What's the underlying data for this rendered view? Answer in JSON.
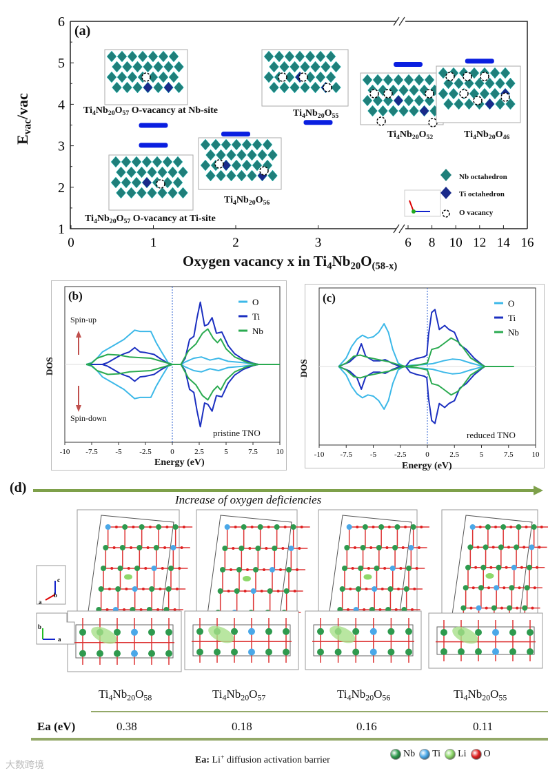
{
  "panel_a": {
    "label": "(a)",
    "structures": [
      {
        "formula": [
          [
            "Ti",
            0
          ],
          [
            "4",
            1
          ],
          [
            "Nb",
            0
          ],
          [
            "20",
            1
          ],
          [
            "O",
            0
          ],
          [
            "57",
            1
          ],
          [
            " O-vacancy at Nb-site",
            0
          ]
        ]
      },
      {
        "formula": [
          [
            "Ti",
            0
          ],
          [
            "4",
            1
          ],
          [
            "Nb",
            0
          ],
          [
            "20",
            1
          ],
          [
            "O",
            0
          ],
          [
            "57",
            1
          ],
          [
            " O-vacancy at Ti-site",
            0
          ]
        ]
      },
      {
        "formula": [
          [
            "Ti",
            0
          ],
          [
            "4",
            1
          ],
          [
            "Nb",
            0
          ],
          [
            "20",
            1
          ],
          [
            "O",
            0
          ],
          [
            "56",
            1
          ]
        ]
      },
      {
        "formula": [
          [
            "Ti",
            0
          ],
          [
            "4",
            1
          ],
          [
            "Nb",
            0
          ],
          [
            "20",
            1
          ],
          [
            "O",
            0
          ],
          [
            "55",
            1
          ]
        ]
      },
      {
        "formula": [
          [
            "Ti",
            0
          ],
          [
            "4",
            1
          ],
          [
            "Nb",
            0
          ],
          [
            "20",
            1
          ],
          [
            "O",
            0
          ],
          [
            "52",
            1
          ]
        ]
      },
      {
        "formula": [
          [
            "Ti",
            0
          ],
          [
            "4",
            1
          ],
          [
            "Nb",
            0
          ],
          [
            "20",
            1
          ],
          [
            "O",
            0
          ],
          [
            "46",
            1
          ]
        ]
      }
    ],
    "legend": [
      "Nb octahedron",
      "Ti octahedron",
      "O vacancy"
    ],
    "xlabel": [
      [
        "Oxygen vacancy x in Ti",
        0
      ],
      [
        "4",
        1
      ],
      [
        "Nb",
        0
      ],
      [
        "20",
        1
      ],
      [
        "O",
        0
      ],
      [
        "(58-x)",
        1
      ]
    ],
    "ylabel": [
      [
        "E",
        0
      ],
      [
        "vac",
        1
      ],
      [
        "/vac",
        0
      ]
    ]
  },
  "chart_data": [
    {
      "type": "scatter",
      "title": "(a)",
      "xlabel": "Oxygen vacancy x in Ti4Nb20O(58-x)",
      "ylabel": "Evac/vac",
      "xlim": [
        0,
        16
      ],
      "x_break": [
        3,
        6
      ],
      "ylim": [
        1,
        6
      ],
      "xticks": [
        "0",
        "1",
        "2",
        "3",
        "6",
        "8",
        "10",
        "12",
        "14",
        "16"
      ],
      "yticks": [
        "1",
        "2",
        "3",
        "4",
        "5",
        "6"
      ],
      "points": [
        {
          "x": 1,
          "y": 3.5,
          "label": "Ti4Nb20O57 O-vacancy at Nb-site"
        },
        {
          "x": 1,
          "y": 3.02,
          "label": "Ti4Nb20O57 O-vacancy at Ti-site"
        },
        {
          "x": 2,
          "y": 3.29,
          "label": "Ti4Nb20O56"
        },
        {
          "x": 3,
          "y": 3.57,
          "label": "Ti4Nb20O55"
        },
        {
          "x": 6,
          "y": 4.97,
          "label": "Ti4Nb20O52"
        },
        {
          "x": 12,
          "y": 5.05,
          "label": "Ti4Nb20O46"
        }
      ],
      "marker_color": "#0a1fe0"
    },
    {
      "type": "line",
      "title": "(b)",
      "annotation": "pristine TNO",
      "xlabel": "Energy (eV)",
      "ylabel": "DOS",
      "xlim": [
        -10,
        10
      ],
      "ylim": [
        -1.25,
        1.25
      ],
      "xticks": [
        "-10",
        "-7.5",
        "-5",
        "-2.5",
        "0",
        "2.5",
        "5",
        "7.5",
        "10"
      ],
      "spin_up_label": "Spin-up",
      "spin_down_label": "Spin-down",
      "legend_position": "top-right",
      "fermi_level": 0,
      "spin_down_mirrors_up": true,
      "series": [
        {
          "name": "O",
          "color": "#3cb8e8",
          "points": [
            [
              -8,
              0
            ],
            [
              -7.5,
              0.03
            ],
            [
              -7,
              0.1
            ],
            [
              -6.5,
              0.2
            ],
            [
              -5.5,
              0.3
            ],
            [
              -4.5,
              0.4
            ],
            [
              -3.5,
              0.55
            ],
            [
              -3,
              0.53
            ],
            [
              -2.5,
              0.53
            ],
            [
              -2,
              0.53
            ],
            [
              -1.5,
              0.35
            ],
            [
              -1,
              0.2
            ],
            [
              -0.4,
              0.03
            ],
            [
              0,
              0
            ],
            [
              0.8,
              0
            ],
            [
              1.2,
              0.04
            ],
            [
              2,
              0.1
            ],
            [
              2.7,
              0.12
            ],
            [
              3.5,
              0.07
            ],
            [
              4.3,
              0.1
            ],
            [
              5.2,
              0.05
            ],
            [
              6.5,
              0.03
            ],
            [
              8,
              0
            ]
          ]
        },
        {
          "name": "Ti",
          "color": "#1b2fc0",
          "points": [
            [
              -8,
              0
            ],
            [
              -6.5,
              0
            ],
            [
              -6,
              0.03
            ],
            [
              -5,
              0.13
            ],
            [
              -4.5,
              0.17
            ],
            [
              -4,
              0.2
            ],
            [
              -3.5,
              0.27
            ],
            [
              -3,
              0.2
            ],
            [
              -2.5,
              0.19
            ],
            [
              -1.7,
              0.16
            ],
            [
              -1,
              0.08
            ],
            [
              -0.3,
              0.01
            ],
            [
              0,
              0
            ],
            [
              0.8,
              0
            ],
            [
              1.2,
              0.1
            ],
            [
              1.6,
              0.4
            ],
            [
              2,
              0.45
            ],
            [
              2.3,
              0.75
            ],
            [
              2.6,
              1.0
            ],
            [
              3,
              0.62
            ],
            [
              3.3,
              0.64
            ],
            [
              3.7,
              0.75
            ],
            [
              4.1,
              0.5
            ],
            [
              4.6,
              0.52
            ],
            [
              5.2,
              0.3
            ],
            [
              5.8,
              0.17
            ],
            [
              6.6,
              0.08
            ],
            [
              7.5,
              0.02
            ],
            [
              8,
              0
            ]
          ]
        },
        {
          "name": "Nb",
          "color": "#2aaa50",
          "points": [
            [
              -8,
              0
            ],
            [
              -7.5,
              0.02
            ],
            [
              -7,
              0.1
            ],
            [
              -6,
              0.16
            ],
            [
              -5,
              0.15
            ],
            [
              -4,
              0.12
            ],
            [
              -3,
              0.11
            ],
            [
              -2,
              0.1
            ],
            [
              -1,
              0.05
            ],
            [
              0,
              0
            ],
            [
              0.8,
              0
            ],
            [
              1.5,
              0.22
            ],
            [
              2.2,
              0.33
            ],
            [
              2.8,
              0.5
            ],
            [
              3.3,
              0.57
            ],
            [
              3.8,
              0.42
            ],
            [
              4.2,
              0.35
            ],
            [
              4.5,
              0.41
            ],
            [
              5,
              0.25
            ],
            [
              5.8,
              0.12
            ],
            [
              7,
              0.03
            ],
            [
              8,
              0
            ],
            [
              10,
              0
            ]
          ]
        }
      ]
    },
    {
      "type": "line",
      "title": "(c)",
      "annotation": "reduced TNO",
      "xlabel": "Energy (eV)",
      "ylabel": "DOS",
      "xlim": [
        -10,
        10
      ],
      "ylim": [
        -1.38,
        1.38
      ],
      "xticks": [
        "-10",
        "-7.5",
        "-5",
        "-2.5",
        "0",
        "2.5",
        "5",
        "7.5",
        "10"
      ],
      "legend_position": "top-right",
      "fermi_level": 0,
      "spin_down_mirrors_up": true,
      "series": [
        {
          "name": "O",
          "color": "#3cb8e8",
          "points": [
            [
              -8.2,
              0
            ],
            [
              -7.5,
              0.15
            ],
            [
              -7,
              0.35
            ],
            [
              -6.5,
              0.48
            ],
            [
              -6,
              0.55
            ],
            [
              -5.5,
              0.5
            ],
            [
              -5,
              0.52
            ],
            [
              -4.5,
              0.6
            ],
            [
              -4,
              0.75
            ],
            [
              -3.6,
              0.6
            ],
            [
              -3.2,
              0.3
            ],
            [
              -2.7,
              0.06
            ],
            [
              -2.2,
              0
            ],
            [
              -1.5,
              0.02
            ],
            [
              -0.5,
              0.03
            ],
            [
              0.5,
              0.05
            ],
            [
              1.5,
              0.1
            ],
            [
              2.3,
              0.13
            ],
            [
              3,
              0.12
            ],
            [
              4,
              0.06
            ],
            [
              5,
              0.01
            ],
            [
              5.3,
              0
            ]
          ]
        },
        {
          "name": "Ti",
          "color": "#1b2fc0",
          "points": [
            [
              -8.2,
              0
            ],
            [
              -7.2,
              0.08
            ],
            [
              -6.5,
              0.2
            ],
            [
              -6.1,
              0.4
            ],
            [
              -5.7,
              0.18
            ],
            [
              -5,
              0.1
            ],
            [
              -4.4,
              0.1
            ],
            [
              -3.9,
              0.12
            ],
            [
              -3.2,
              0.05
            ],
            [
              -2.5,
              0
            ],
            [
              -2,
              0
            ],
            [
              -1.6,
              0.1
            ],
            [
              -1,
              0.14
            ],
            [
              -0.3,
              0.17
            ],
            [
              -0.05,
              0.2
            ],
            [
              0.1,
              0.55
            ],
            [
              0.4,
              0.95
            ],
            [
              0.7,
              1.0
            ],
            [
              1.1,
              0.65
            ],
            [
              1.6,
              0.72
            ],
            [
              2,
              0.65
            ],
            [
              2.5,
              0.6
            ],
            [
              3,
              0.38
            ],
            [
              3.6,
              0.3
            ],
            [
              4.3,
              0.15
            ],
            [
              5,
              0.04
            ],
            [
              5.3,
              0
            ]
          ]
        },
        {
          "name": "Nb",
          "color": "#2aaa50",
          "points": [
            [
              -8.2,
              0
            ],
            [
              -7.5,
              0.06
            ],
            [
              -6.8,
              0.18
            ],
            [
              -6.2,
              0.2
            ],
            [
              -5.5,
              0.16
            ],
            [
              -4.5,
              0.12
            ],
            [
              -3.5,
              0.08
            ],
            [
              -2.5,
              0.02
            ],
            [
              -2,
              0
            ],
            [
              -1,
              0.02
            ],
            [
              0,
              0.06
            ],
            [
              0.4,
              0.3
            ],
            [
              1,
              0.33
            ],
            [
              1.5,
              0.4
            ],
            [
              2.2,
              0.5
            ],
            [
              2.8,
              0.44
            ],
            [
              3.3,
              0.33
            ],
            [
              4,
              0.15
            ],
            [
              5,
              0.03
            ],
            [
              5.3,
              0
            ],
            [
              8,
              0
            ]
          ]
        }
      ]
    },
    {
      "type": "table",
      "title": "(d)",
      "columns": [
        "Ti4Nb20O58",
        "Ti4Nb20O57",
        "Ti4Nb20O56",
        "Ti4Nb20O55"
      ],
      "rows": [
        {
          "label": "Ea (eV)",
          "values": [
            "0.38",
            "0.18",
            "0.16",
            "0.11"
          ]
        }
      ]
    }
  ],
  "panel_d": {
    "label": "(d)",
    "arrow_caption": "Increase of oxygen deficiencies",
    "columns": [
      [
        [
          "Ti",
          0
        ],
        [
          "4",
          1
        ],
        [
          "Nb",
          0
        ],
        [
          "20",
          1
        ],
        [
          "O",
          0
        ],
        [
          "58",
          1
        ]
      ],
      [
        [
          "Ti",
          0
        ],
        [
          "4",
          1
        ],
        [
          "Nb",
          0
        ],
        [
          "20",
          1
        ],
        [
          "O",
          0
        ],
        [
          "57",
          1
        ]
      ],
      [
        [
          "Ti",
          0
        ],
        [
          "4",
          1
        ],
        [
          "Nb",
          0
        ],
        [
          "20",
          1
        ],
        [
          "O",
          0
        ],
        [
          "56",
          1
        ]
      ],
      [
        [
          "Ti",
          0
        ],
        [
          "4",
          1
        ],
        [
          "Nb",
          0
        ],
        [
          "20",
          1
        ],
        [
          "O",
          0
        ],
        [
          "55",
          1
        ]
      ]
    ],
    "row_label": "Ea (eV)",
    "values": [
      "0.38",
      "0.18",
      "0.16",
      "0.11"
    ],
    "axes_top": {
      "c": "c",
      "b": "b",
      "a": "a"
    },
    "axes_bottom": {
      "b": "b",
      "a": "a"
    },
    "footnote_key": "Ea:",
    "footnote_text": [
      [
        " Li",
        0
      ],
      [
        "+",
        2
      ],
      [
        " diffusion  activation  barrier",
        0
      ]
    ],
    "atom_legend": [
      {
        "name": "Nb",
        "color": "#2e9a4e"
      },
      {
        "name": "Ti",
        "color": "#4aa8e8"
      },
      {
        "name": "Li",
        "color": "#8ed86a"
      },
      {
        "name": "O",
        "color": "#e02020"
      }
    ]
  },
  "watermark": "大数跨境",
  "colors": {
    "accent_bar": "#0a1fe0",
    "nb_octa": "#1f7f7a",
    "ti_octa": "#1a2a8a",
    "table_rule": "#93a868",
    "arrow": "#7ea04a"
  }
}
